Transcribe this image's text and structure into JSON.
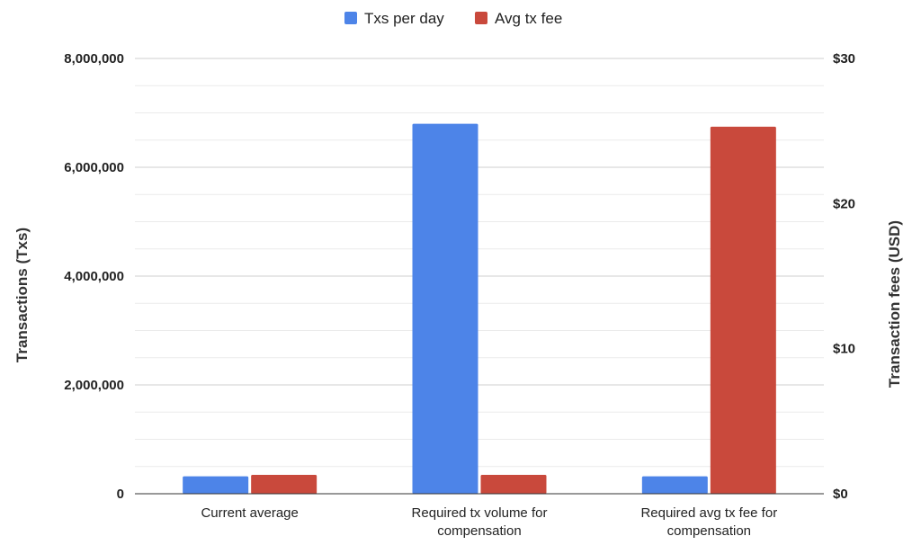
{
  "chart_data": {
    "type": "bar",
    "categories": [
      [
        "Current average"
      ],
      [
        "Required tx volume for",
        "compensation"
      ],
      [
        "Required avg tx fee for",
        "compensation"
      ]
    ],
    "series": [
      {
        "name": "Txs per day",
        "axis": "left",
        "color": "#4d84e8",
        "values": [
          320000,
          6800000,
          320000
        ]
      },
      {
        "name": "Avg tx fee",
        "axis": "right",
        "color": "#c9493c",
        "values": [
          1.3,
          1.3,
          25.3
        ]
      }
    ],
    "y_left": {
      "label": "Transactions (Txs)",
      "range": [
        0,
        8000000
      ],
      "ticks": [
        0,
        2000000,
        4000000,
        6000000,
        8000000
      ],
      "tick_labels": [
        "0",
        "2,000,000",
        "4,000,000",
        "6,000,000",
        "8,000,000"
      ]
    },
    "y_right": {
      "label": "Transaction fees (USD)",
      "range": [
        0,
        30
      ],
      "ticks": [
        0,
        10,
        20,
        30
      ],
      "tick_labels": [
        "$0",
        "$10",
        "$20",
        "$30"
      ]
    },
    "grid": true,
    "minor_grid": true,
    "legend": "top-center"
  }
}
